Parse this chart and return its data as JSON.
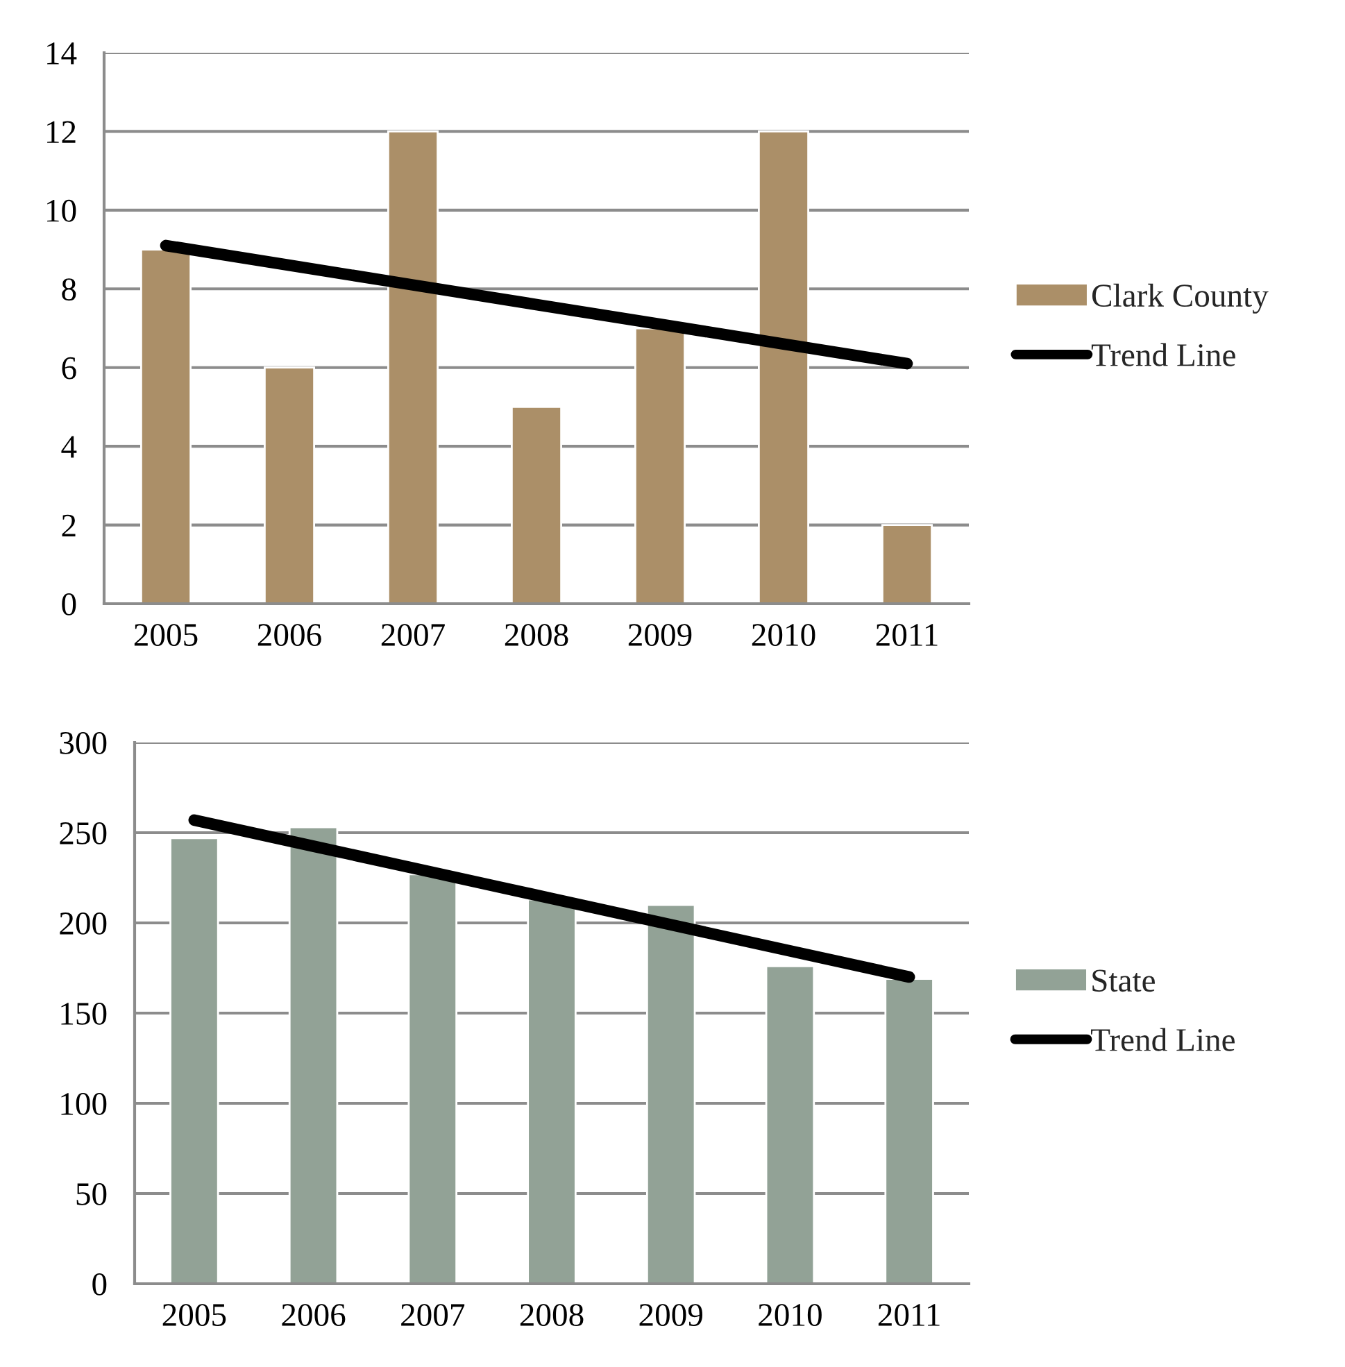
{
  "chart_data": [
    {
      "type": "bar",
      "categories": [
        "2005",
        "2006",
        "2007",
        "2008",
        "2009",
        "2010",
        "2011"
      ],
      "ylim": [
        0,
        14
      ],
      "yticks": [
        0,
        2,
        4,
        6,
        8,
        10,
        12,
        14
      ],
      "grid": "y",
      "legend": "right",
      "series": [
        {
          "name": "Clark County",
          "color": "#ab8f68",
          "values": [
            9,
            6,
            12,
            5,
            7,
            12,
            2
          ]
        },
        {
          "name": "Trend Line",
          "type": "line",
          "color": "#000000",
          "values": [
            9.1,
            8.6,
            8.1,
            7.6,
            7.1,
            6.6,
            6.1
          ]
        }
      ]
    },
    {
      "type": "bar",
      "categories": [
        "2005",
        "2006",
        "2007",
        "2008",
        "2009",
        "2010",
        "2011"
      ],
      "ylim": [
        0,
        300
      ],
      "yticks": [
        0,
        50,
        100,
        150,
        200,
        250,
        300
      ],
      "grid": "y",
      "legend": "right",
      "series": [
        {
          "name": "State",
          "color": "#92a296",
          "values": [
            247,
            253,
            227,
            213,
            210,
            176,
            169
          ]
        },
        {
          "name": "Trend Line",
          "type": "line",
          "color": "#000000",
          "values": [
            257,
            242.5,
            228,
            213.5,
            199,
            184.5,
            170
          ]
        }
      ]
    }
  ]
}
